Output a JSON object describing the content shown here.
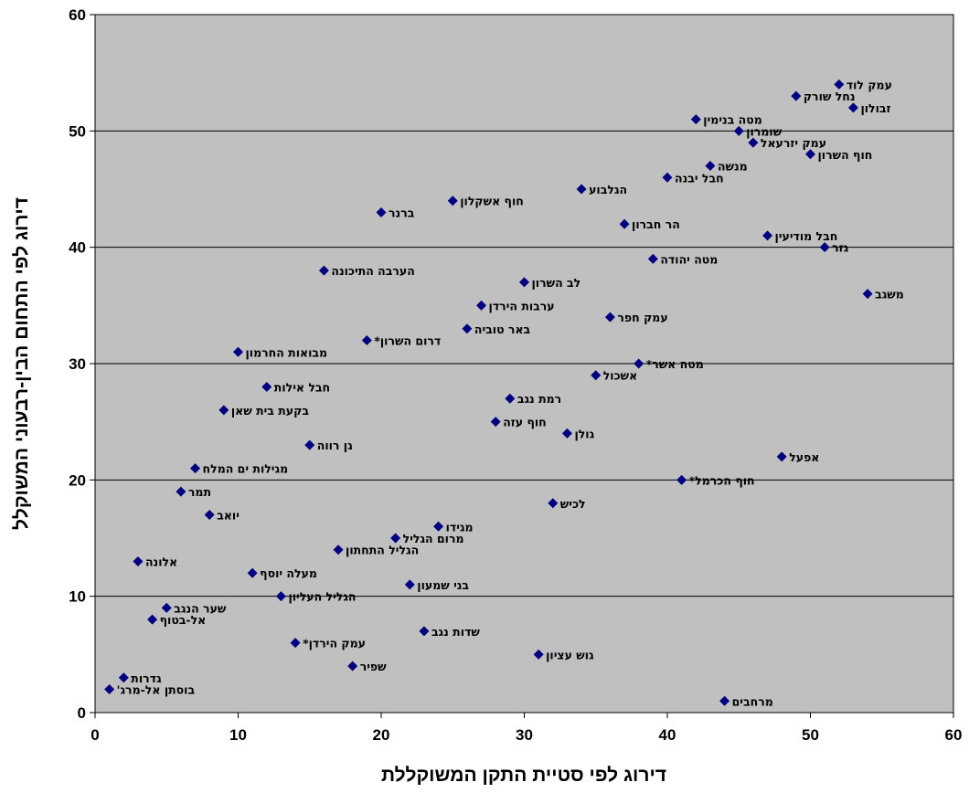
{
  "chart_data": {
    "type": "scatter",
    "title": "",
    "xlabel": "דירוג לפי סטיית התקן המשוקללת",
    "ylabel": "דירוג לפי התחום הבין-רבעוני המשוקלל",
    "xlim": [
      0,
      60
    ],
    "ylim": [
      0,
      60
    ],
    "xticks": [
      "0",
      "10",
      "20",
      "30",
      "40",
      "50",
      "60"
    ],
    "yticks": [
      "0",
      "10",
      "20",
      "30",
      "40",
      "50",
      "60"
    ],
    "grid": "horizontal",
    "plot_background": "#C0C0C0",
    "marker_color": "#000080",
    "points": [
      {
        "x": 52,
        "y": 54,
        "label": "עמק לוד"
      },
      {
        "x": 49,
        "y": 53,
        "label": "נחל שורק"
      },
      {
        "x": 53,
        "y": 52,
        "label": "זבולון"
      },
      {
        "x": 42,
        "y": 51,
        "label": "מטה בנימין"
      },
      {
        "x": 45,
        "y": 50,
        "label": "שומרון"
      },
      {
        "x": 46,
        "y": 49,
        "label": "עמק יזרעאל"
      },
      {
        "x": 50,
        "y": 48,
        "label": "חוף השרון"
      },
      {
        "x": 43,
        "y": 47,
        "label": "מנשה"
      },
      {
        "x": 40,
        "y": 46,
        "label": "חבל יבנה"
      },
      {
        "x": 34,
        "y": 45,
        "label": "הגלבוע"
      },
      {
        "x": 25,
        "y": 44,
        "label": "חוף אשקלון"
      },
      {
        "x": 20,
        "y": 43,
        "label": "ברנר"
      },
      {
        "x": 37,
        "y": 42,
        "label": "הר חברון"
      },
      {
        "x": 47,
        "y": 41,
        "label": "חבל מודיעין"
      },
      {
        "x": 51,
        "y": 40,
        "label": "גזר"
      },
      {
        "x": 39,
        "y": 39,
        "label": "מטה יהודה"
      },
      {
        "x": 16,
        "y": 38,
        "label": "הערבה התיכונה"
      },
      {
        "x": 30,
        "y": 37,
        "label": "לב השרון"
      },
      {
        "x": 54,
        "y": 36,
        "label": "משגב"
      },
      {
        "x": 27,
        "y": 35,
        "label": "ערבות הירדן"
      },
      {
        "x": 36,
        "y": 34,
        "label": "עמק חפר"
      },
      {
        "x": 26,
        "y": 33,
        "label": "באר טוביה"
      },
      {
        "x": 19,
        "y": 32,
        "label": "דרום השרון*"
      },
      {
        "x": 10,
        "y": 31,
        "label": "מבואות החרמון"
      },
      {
        "x": 38,
        "y": 30,
        "label": "מטה אשר*"
      },
      {
        "x": 35,
        "y": 29,
        "label": "אשכול"
      },
      {
        "x": 12,
        "y": 28,
        "label": "חבל אילות"
      },
      {
        "x": 29,
        "y": 27,
        "label": "רמת נגב"
      },
      {
        "x": 9,
        "y": 26,
        "label": "בקעת בית שאן"
      },
      {
        "x": 28,
        "y": 25,
        "label": "חוף עזה"
      },
      {
        "x": 33,
        "y": 24,
        "label": "גולן"
      },
      {
        "x": 15,
        "y": 23,
        "label": "גן רווה"
      },
      {
        "x": 48,
        "y": 22,
        "label": "אפעל"
      },
      {
        "x": 7,
        "y": 21,
        "label": "מגילות ים המלח"
      },
      {
        "x": 41,
        "y": 20,
        "label": "חוף הכרמל*"
      },
      {
        "x": 6,
        "y": 19,
        "label": "תמר"
      },
      {
        "x": 32,
        "y": 18,
        "label": "לכיש"
      },
      {
        "x": 8,
        "y": 17,
        "label": "יואב"
      },
      {
        "x": 24,
        "y": 16,
        "label": "מגידו"
      },
      {
        "x": 21,
        "y": 15,
        "label": "מרום הגליל"
      },
      {
        "x": 17,
        "y": 14,
        "label": "הגליל התחתון"
      },
      {
        "x": 3,
        "y": 13,
        "label": "אלונה"
      },
      {
        "x": 11,
        "y": 12,
        "label": "מעלה יוסף"
      },
      {
        "x": 22,
        "y": 11,
        "label": "בני שמעון"
      },
      {
        "x": 13,
        "y": 10,
        "label": "הגליל העליון"
      },
      {
        "x": 5,
        "y": 9,
        "label": "שער הנגב"
      },
      {
        "x": 4,
        "y": 8,
        "label": "אל-בטוף"
      },
      {
        "x": 23,
        "y": 7,
        "label": "שדות נגב"
      },
      {
        "x": 14,
        "y": 6,
        "label": "עמק הירדן*"
      },
      {
        "x": 31,
        "y": 5,
        "label": "גוש עציון"
      },
      {
        "x": 18,
        "y": 4,
        "label": "שפיר"
      },
      {
        "x": 2,
        "y": 3,
        "label": "גדרות"
      },
      {
        "x": 1,
        "y": 2,
        "label": "בוסתן אל-מרג'"
      },
      {
        "x": 44,
        "y": 1,
        "label": "מרחבים"
      }
    ]
  }
}
